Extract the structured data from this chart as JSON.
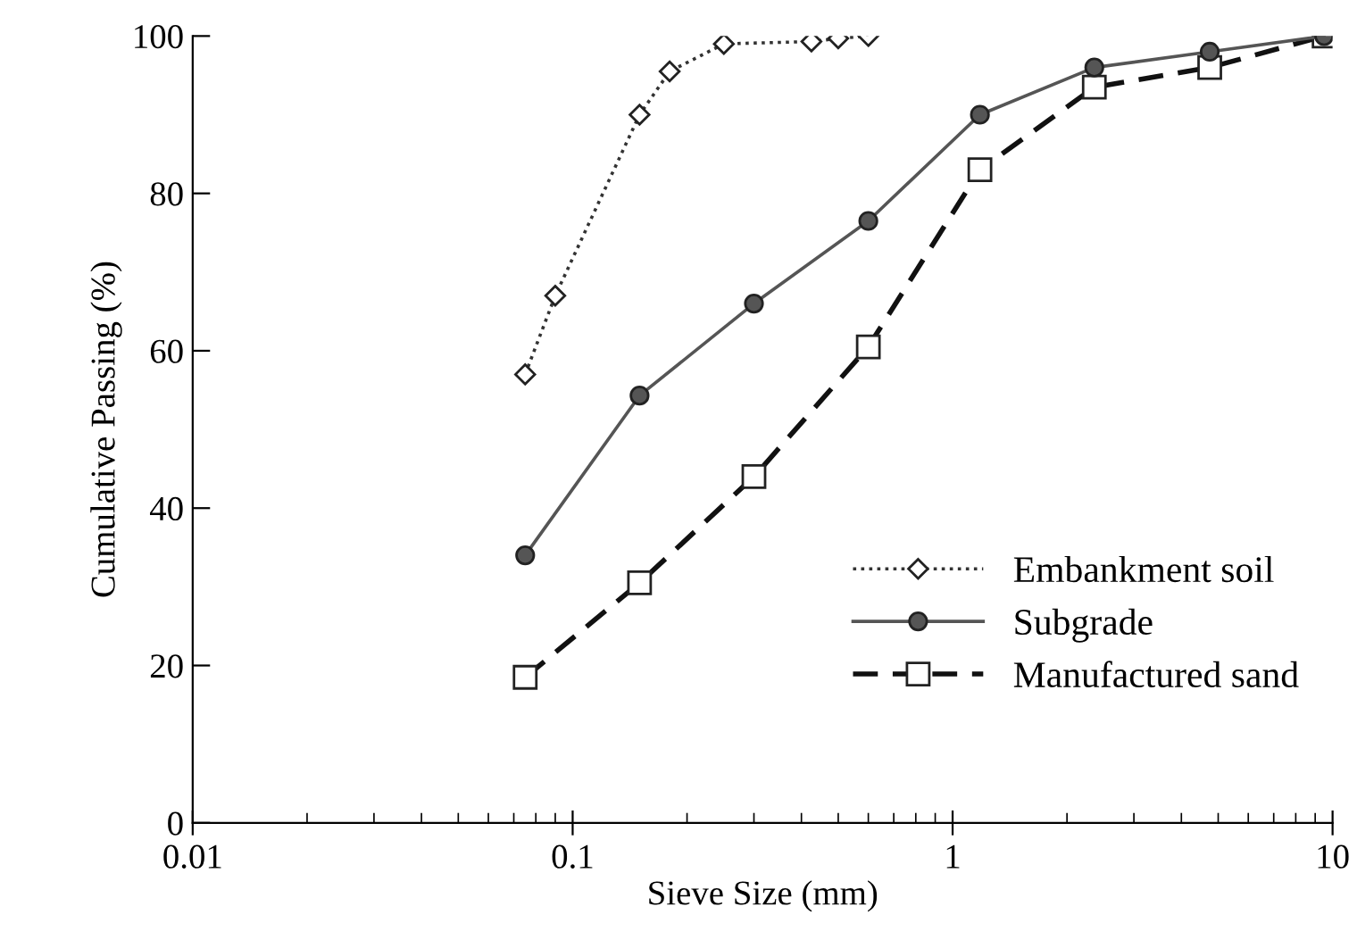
{
  "chart_data": {
    "type": "line",
    "xlabel": "Sieve Size (mm)",
    "ylabel": "Cumulative Passing (%)",
    "log": "x",
    "xlim": [
      0.01,
      10
    ],
    "xticks": [
      0.01,
      0.1,
      1,
      10
    ],
    "ylim": [
      0,
      100
    ],
    "yticks": [
      0,
      20,
      40,
      60,
      80,
      100
    ],
    "grid": false,
    "legend": "bottom right",
    "series": [
      {
        "name": "Embankment soil",
        "color": "#333333",
        "marker": "diamond",
        "line_style": "dotted",
        "x": [
          0.075,
          0.09,
          0.15,
          0.18,
          0.25,
          0.425,
          0.5,
          0.6
        ],
        "values": [
          57,
          67,
          90,
          95.5,
          99,
          99.3,
          99.7,
          100
        ]
      },
      {
        "name": "Subgrade",
        "color": "#555555",
        "marker": "circle",
        "line_style": "solid",
        "x": [
          0.075,
          0.15,
          0.3,
          0.6,
          1.18,
          2.36,
          4.75,
          9.5
        ],
        "values": [
          34,
          54.3,
          66,
          76.5,
          90,
          96,
          98,
          100
        ]
      },
      {
        "name": "Manufactured sand",
        "color": "#111111",
        "marker": "square",
        "line_style": "dashed",
        "x": [
          0.075,
          0.15,
          0.3,
          0.6,
          1.18,
          2.36,
          4.75,
          9.5
        ],
        "values": [
          18.5,
          30.5,
          44,
          60.5,
          83,
          93.5,
          96,
          100
        ]
      }
    ]
  }
}
